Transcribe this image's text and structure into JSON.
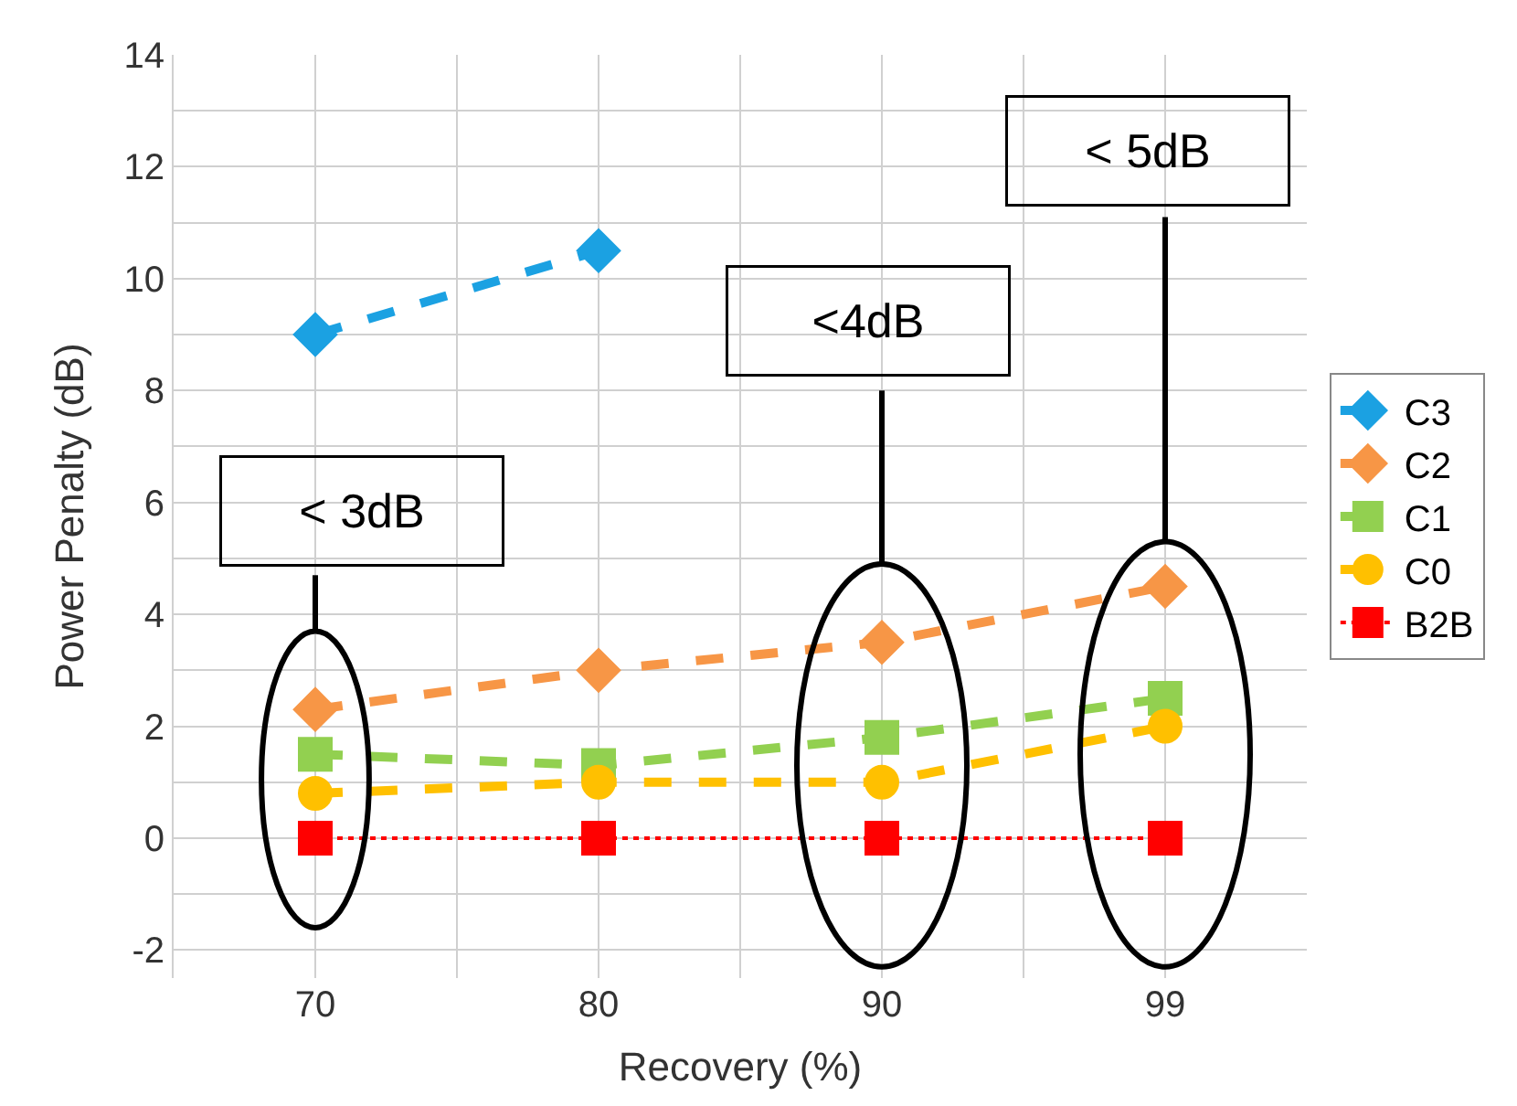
{
  "chart_data": {
    "type": "line",
    "xlabel": "Recovery (%)",
    "ylabel": "Power Penalty (dB)",
    "categories": [
      "70",
      "80",
      "90",
      "99"
    ],
    "series": [
      {
        "name": "C3",
        "color": "#1ba1e2",
        "values": [
          9,
          10.5,
          null,
          null
        ],
        "marker": "diamond",
        "line_style": "dashed"
      },
      {
        "name": "C2",
        "color": "#f79646",
        "values": [
          2.3,
          3,
          3.5,
          4.5
        ],
        "marker": "diamond",
        "line_style": "dashed"
      },
      {
        "name": "C1",
        "color": "#92d050",
        "values": [
          1.5,
          1.3,
          1.8,
          2.5
        ],
        "marker": "square",
        "line_style": "dashed"
      },
      {
        "name": "C0",
        "color": "#ffc000",
        "values": [
          0.8,
          1,
          1,
          2
        ],
        "marker": "circle",
        "line_style": "dashed"
      },
      {
        "name": "B2B",
        "color": "#ff0000",
        "values": [
          0,
          0,
          0,
          0
        ],
        "marker": "square",
        "line_style": "dotted"
      }
    ],
    "ylim": [
      -2.5,
      14
    ],
    "yticks": [
      -2,
      {
        "value": -1,
        "label": null
      },
      0,
      {
        "value": 1,
        "label": null
      },
      2,
      {
        "value": 3,
        "label": null
      },
      4,
      {
        "value": 5,
        "label": null
      },
      6,
      {
        "value": 7,
        "label": null
      },
      8,
      {
        "value": 9,
        "label": null
      },
      10,
      {
        "value": 11,
        "label": null
      },
      12,
      {
        "value": 13,
        "label": null
      },
      14
    ],
    "annotations": [
      "< 3dB",
      "<4dB",
      "< 5dB"
    ],
    "grid": true,
    "legend": "right"
  }
}
